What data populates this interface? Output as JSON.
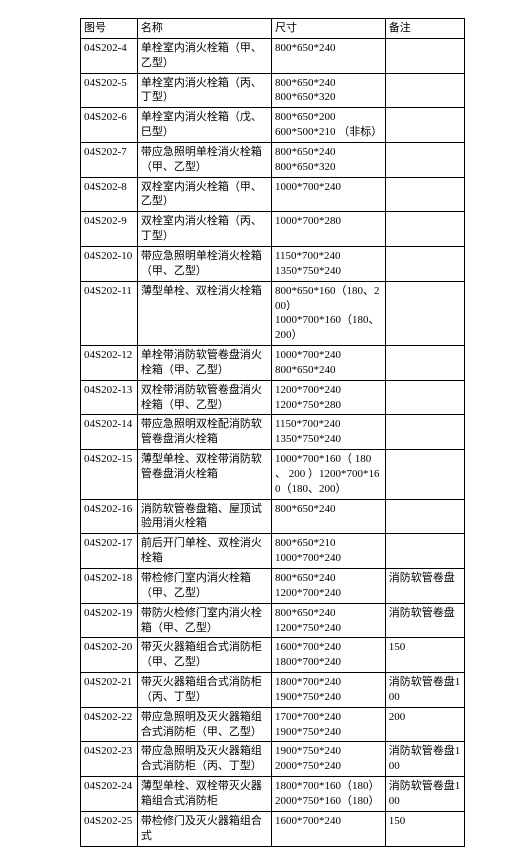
{
  "headers": {
    "col1": "图号",
    "col2": "名称",
    "col3": "尺寸",
    "col4": "备注"
  },
  "rows": [
    {
      "c1": "04S202-4",
      "c2": "单栓室内消火栓箱（甲、乙型）",
      "c3": "800*650*240",
      "c4": ""
    },
    {
      "c1": "04S202-5",
      "c2": "单栓室内消火栓箱（丙、丁型）",
      "c3": "800*650*240\n800*650*320",
      "c4": ""
    },
    {
      "c1": "04S202-6",
      "c2": "单栓室内消火栓箱（戊、巳型）",
      "c3": "800*650*200\n600*500*210 （非标）",
      "c4": ""
    },
    {
      "c1": "04S202-7",
      "c2": "带应急照明单栓消火栓箱（甲、乙型）",
      "c3": "800*650*240\n800*650*320",
      "c4": ""
    },
    {
      "c1": "04S202-8",
      "c2": "双栓室内消火栓箱（甲、乙型）",
      "c3": "1000*700*240",
      "c4": ""
    },
    {
      "c1": "04S202-9",
      "c2": "双栓室内消火栓箱（丙、丁型）",
      "c3": "1000*700*280",
      "c4": ""
    },
    {
      "c1": "04S202-10",
      "c2": "带应急照明单栓消火栓箱（甲、乙型）",
      "c3": "1150*700*240\n1350*750*240",
      "c4": ""
    },
    {
      "c1": "04S202-11",
      "c2": "薄型单栓、双栓消火栓箱",
      "c3": "800*650*160（180、200）\n1000*700*160（180、200）",
      "c4": ""
    },
    {
      "c1": "04S202-12",
      "c2": "单栓带消防软管卷盘消火栓箱（甲、乙型）",
      "c3": "1000*700*240\n800*650*240",
      "c4": ""
    },
    {
      "c1": "04S202-13",
      "c2": "双栓带消防软管卷盘消火栓箱（甲、乙型）",
      "c3": "1200*700*240\n1200*750*280",
      "c4": ""
    },
    {
      "c1": "04S202-14",
      "c2": "带应急照明双栓配消防软管卷盘消火栓箱",
      "c3": "1150*700*240\n1350*750*240",
      "c4": ""
    },
    {
      "c1": "04S202-15",
      "c2": "薄型单栓、双栓带消防软管卷盘消火栓箱",
      "c3": "1000*700*160（ 180 、 200 ）1200*700*160（180、200）",
      "c4": ""
    },
    {
      "c1": "04S202-16",
      "c2": "消防软管卷盘箱、屋顶试验用消火栓箱",
      "c3": "800*650*240",
      "c4": ""
    },
    {
      "c1": "04S202-17",
      "c2": "前后开门单栓、双栓消火栓箱",
      "c3": "800*650*210\n1000*700*240",
      "c4": ""
    },
    {
      "c1": "04S202-18",
      "c2": "带检修门室内消火栓箱（甲、乙型）",
      "c3": "800*650*240\n1200*700*240",
      "c4": "消防软管卷盘"
    },
    {
      "c1": "04S202-19",
      "c2": "带防火检修门室内消火栓箱（甲、乙型）",
      "c3": "800*650*240\n1200*750*240",
      "c4": "消防软管卷盘"
    },
    {
      "c1": "04S202-20",
      "c2": "带灭火器箱组合式消防柜（甲、乙型）",
      "c3": "1600*700*240\n1800*700*240",
      "c4": "150"
    },
    {
      "c1": "04S202-21",
      "c2": "带灭火器箱组合式消防柜（丙、丁型）",
      "c3": "1800*700*240\n1900*750*240",
      "c4": "消防软管卷盘100"
    },
    {
      "c1": "04S202-22",
      "c2": "带应急照明及灭火器箱组合式消防柜（甲、乙型）",
      "c3": "1700*700*240\n1900*750*240",
      "c4": "200"
    },
    {
      "c1": "04S202-23",
      "c2": "带应急照明及灭火器箱组合式消防柜（丙、丁型）",
      "c3": "1900*750*240\n2000*750*240",
      "c4": "消防软管卷盘100"
    },
    {
      "c1": "04S202-24",
      "c2": "薄型单栓、双栓带灭火器箱组合式消防柜",
      "c3": "1800*700*160（180）\n2000*750*160（180）",
      "c4": "消防软管卷盘100"
    },
    {
      "c1": "04S202-25",
      "c2": "带检修门及灭火器箱组合式",
      "c3": "1600*700*240",
      "c4": "150"
    }
  ]
}
